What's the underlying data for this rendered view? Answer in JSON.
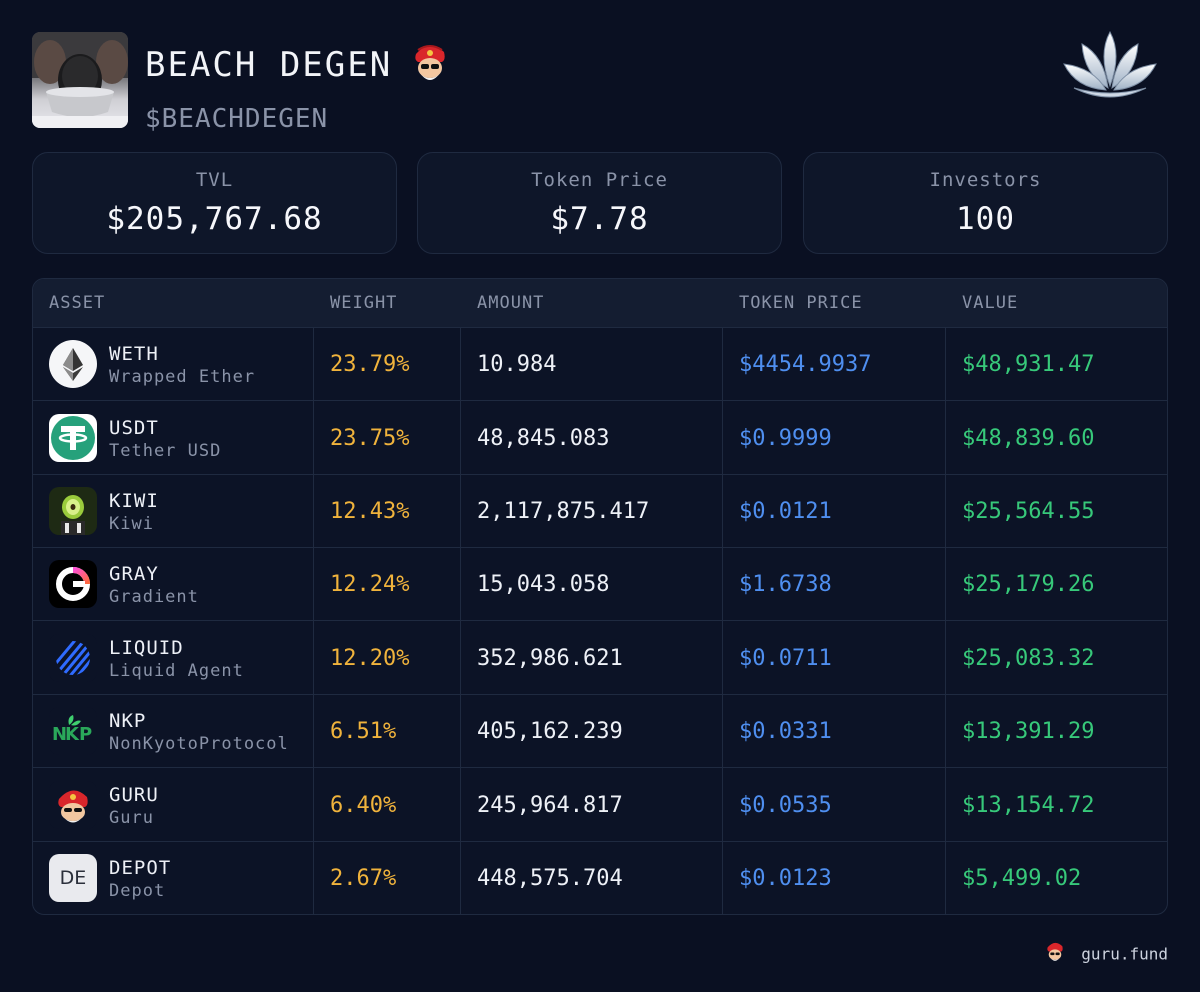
{
  "fund": {
    "name": "BEACH DEGEN",
    "ticker": "$BEACHDEGEN"
  },
  "stats": {
    "tvl_label": "TVL",
    "tvl_value": "$205,767.68",
    "price_label": "Token Price",
    "price_value": "$7.78",
    "investors_label": "Investors",
    "investors_value": "100"
  },
  "table": {
    "headers": [
      "ASSET",
      "WEIGHT",
      "AMOUNT",
      "TOKEN PRICE",
      "VALUE"
    ],
    "rows": [
      {
        "symbol": "WETH",
        "name": "Wrapped Ether",
        "weight": "23.79%",
        "amount": "10.984",
        "price": "$4454.9937",
        "value": "$48,931.47",
        "icon": "ethereum-icon"
      },
      {
        "symbol": "USDT",
        "name": "Tether USD",
        "weight": "23.75%",
        "amount": "48,845.083",
        "price": "$0.9999",
        "value": "$48,839.60",
        "icon": "tether-icon"
      },
      {
        "symbol": "KIWI",
        "name": "Kiwi",
        "weight": "12.43%",
        "amount": "2,117,875.417",
        "price": "$0.0121",
        "value": "$25,564.55",
        "icon": "kiwi-icon"
      },
      {
        "symbol": "GRAY",
        "name": "Gradient",
        "weight": "12.24%",
        "amount": "15,043.058",
        "price": "$1.6738",
        "value": "$25,179.26",
        "icon": "gradient-icon"
      },
      {
        "symbol": "LIQUID",
        "name": "Liquid Agent",
        "weight": "12.20%",
        "amount": "352,986.621",
        "price": "$0.0711",
        "value": "$25,083.32",
        "icon": "liquid-icon"
      },
      {
        "symbol": "NKP",
        "name": "NonKyotoProtocol",
        "weight": "6.51%",
        "amount": "405,162.239",
        "price": "$0.0331",
        "value": "$13,391.29",
        "icon": "nkp-icon"
      },
      {
        "symbol": "GURU",
        "name": "Guru",
        "weight": "6.40%",
        "amount": "245,964.817",
        "price": "$0.0535",
        "value": "$13,154.72",
        "icon": "guru-icon"
      },
      {
        "symbol": "DEPOT",
        "name": "Depot",
        "weight": "2.67%",
        "amount": "448,575.704",
        "price": "$0.0123",
        "value": "$5,499.02",
        "icon": "depot-icon",
        "icon_text": "DE"
      }
    ]
  },
  "footer": {
    "brand": "guru.fund"
  },
  "colors": {
    "weight": "#f0b33c",
    "price": "#4f8ff0",
    "value": "#37c97a",
    "background": "#0a1022"
  }
}
